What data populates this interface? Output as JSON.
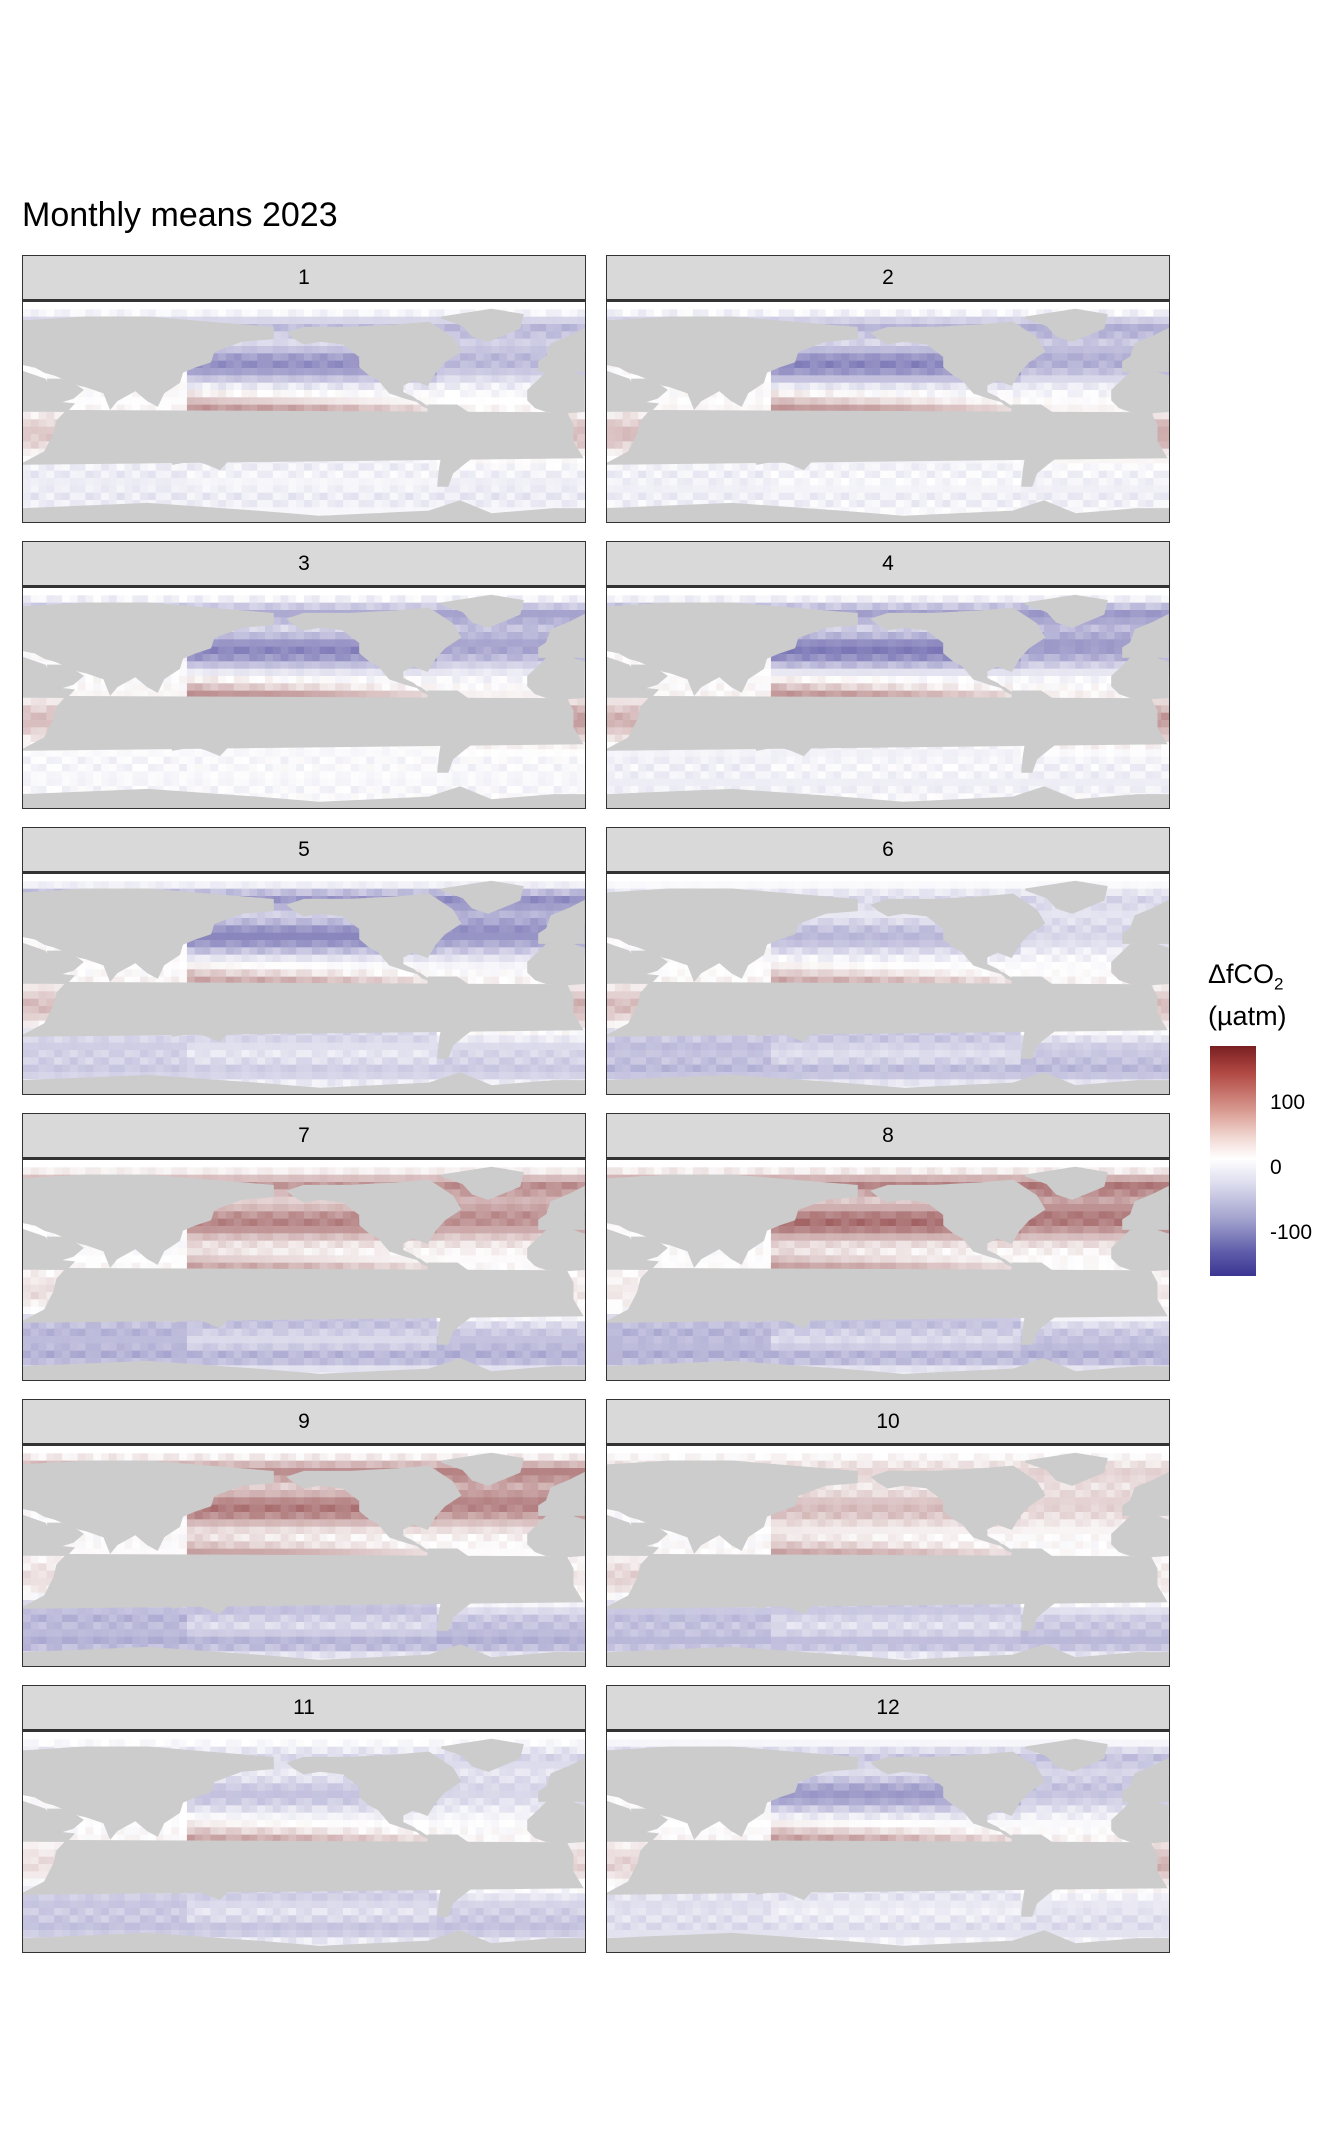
{
  "title": "Monthly means 2023",
  "panels": [
    {
      "label": "1",
      "eq": 0.95,
      "np": -0.55,
      "sp": -0.12,
      "na": -0.35,
      "ind": 0.25,
      "sa": 0.3
    },
    {
      "label": "2",
      "eq": 0.95,
      "np": -0.6,
      "sp": -0.1,
      "na": -0.4,
      "ind": 0.3,
      "sa": 0.4
    },
    {
      "label": "3",
      "eq": 1.0,
      "np": -0.6,
      "sp": -0.05,
      "na": -0.45,
      "ind": 0.3,
      "sa": 0.45
    },
    {
      "label": "4",
      "eq": 0.95,
      "np": -0.65,
      "sp": -0.1,
      "na": -0.5,
      "ind": 0.35,
      "sa": 0.45
    },
    {
      "label": "5",
      "eq": 0.8,
      "np": -0.6,
      "sp": -0.3,
      "na": -0.55,
      "ind": 0.3,
      "sa": 0.35
    },
    {
      "label": "6",
      "eq": 0.75,
      "np": -0.35,
      "sp": -0.4,
      "na": -0.2,
      "ind": 0.3,
      "sa": 0.3
    },
    {
      "label": "7",
      "eq": 0.8,
      "np": 0.55,
      "sp": -0.45,
      "na": 0.5,
      "ind": 0.15,
      "sa": 0.1
    },
    {
      "label": "8",
      "eq": 0.85,
      "np": 0.65,
      "sp": -0.45,
      "na": 0.6,
      "ind": 0.1,
      "sa": 0.1
    },
    {
      "label": "9",
      "eq": 0.85,
      "np": 0.6,
      "sp": -0.45,
      "na": 0.55,
      "ind": 0.15,
      "sa": 0.1
    },
    {
      "label": "10",
      "eq": 0.8,
      "np": 0.3,
      "sp": -0.4,
      "na": 0.2,
      "ind": 0.2,
      "sa": 0.1
    },
    {
      "label": "11",
      "eq": 0.8,
      "np": -0.3,
      "sp": -0.35,
      "na": -0.2,
      "ind": 0.15,
      "sa": 0.2
    },
    {
      "label": "12",
      "eq": 0.85,
      "np": -0.5,
      "sp": -0.2,
      "na": -0.3,
      "ind": 0.2,
      "sa": 0.35
    }
  ],
  "legend": {
    "title_main": "ΔfCO",
    "title_sub": "2",
    "title_unit": "(µatm)",
    "ticks": [
      {
        "label": "100",
        "value": 100
      },
      {
        "label": "0",
        "value": 0
      },
      {
        "label": "-100",
        "value": -100
      }
    ],
    "range": [
      -165,
      190
    ]
  },
  "colors": {
    "high": "#7a1f21",
    "mid": "#ffffff",
    "low": "#3b3593",
    "land": "#cccccc",
    "strip": "#d9d9d9"
  }
}
